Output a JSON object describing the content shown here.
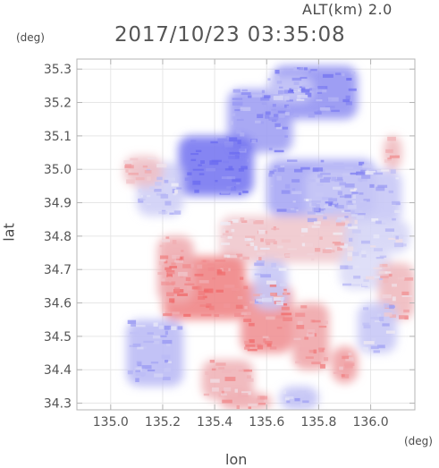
{
  "header": {
    "altitude": "ALT(km) 2.0",
    "timestamp": "2017/10/23 03:35:08"
  },
  "colors": {
    "frame": "#b4b4b4",
    "grid": "#e6e6e6",
    "positive": "#f06a6a",
    "negative": "#6b6bf0",
    "neutral": "#f0f0f8"
  },
  "chart_data": {
    "type": "heatmap",
    "title": "2017/10/23 03:35:08",
    "xlabel": "lon",
    "ylabel": "lat",
    "x_unit": "(deg)",
    "y_unit": "(deg)",
    "xlim": [
      134.87,
      136.17
    ],
    "ylim": [
      34.28,
      35.33
    ],
    "x_ticks": [
      135.0,
      135.2,
      135.4,
      135.6,
      135.8,
      136.0
    ],
    "x_tick_labels": [
      "135.0",
      "135.2",
      "135.4",
      "135.6",
      "135.8",
      "136.0"
    ],
    "y_ticks": [
      34.3,
      34.4,
      34.5,
      34.6,
      34.7,
      34.8,
      34.9,
      35.0,
      35.1,
      35.2,
      35.3
    ],
    "y_tick_labels": [
      "34.3",
      "34.4",
      "34.5",
      "34.6",
      "34.7",
      "34.8",
      "34.9",
      "35.0",
      "35.1",
      "35.2",
      "35.3"
    ],
    "grid": true,
    "colorscale": "diverging blue-white-red",
    "regions": [
      {
        "lon": [
          135.62,
          135.95
        ],
        "lat": [
          35.15,
          35.31
        ],
        "value": -0.7
      },
      {
        "lon": [
          135.45,
          135.7
        ],
        "lat": [
          35.05,
          35.24
        ],
        "value": -0.6
      },
      {
        "lon": [
          135.26,
          135.55
        ],
        "lat": [
          34.92,
          35.1
        ],
        "value": -0.9
      },
      {
        "lon": [
          135.6,
          136.02
        ],
        "lat": [
          34.86,
          35.03
        ],
        "value": -0.55
      },
      {
        "lon": [
          135.75,
          136.12
        ],
        "lat": [
          34.84,
          35.0
        ],
        "value": -0.3
      },
      {
        "lon": [
          135.1,
          135.28
        ],
        "lat": [
          34.86,
          35.02
        ],
        "value": -0.25
      },
      {
        "lon": [
          135.05,
          135.2
        ],
        "lat": [
          34.95,
          35.04
        ],
        "value": 0.35
      },
      {
        "lon": [
          135.42,
          135.95
        ],
        "lat": [
          34.72,
          34.86
        ],
        "value": 0.3
      },
      {
        "lon": [
          135.9,
          136.15
        ],
        "lat": [
          34.75,
          34.85
        ],
        "value": -0.2
      },
      {
        "lon": [
          135.2,
          135.52
        ],
        "lat": [
          34.55,
          34.74
        ],
        "value": 0.8
      },
      {
        "lon": [
          135.5,
          135.7
        ],
        "lat": [
          34.45,
          34.66
        ],
        "value": 0.7
      },
      {
        "lon": [
          135.18,
          135.32
        ],
        "lat": [
          34.6,
          34.8
        ],
        "value": 0.5
      },
      {
        "lon": [
          135.7,
          135.84
        ],
        "lat": [
          34.4,
          34.6
        ],
        "value": 0.55
      },
      {
        "lon": [
          135.85,
          135.95
        ],
        "lat": [
          34.36,
          34.47
        ],
        "value": 0.6
      },
      {
        "lon": [
          135.88,
          136.08
        ],
        "lat": [
          34.64,
          34.76
        ],
        "value": -0.15
      },
      {
        "lon": [
          136.03,
          136.17
        ],
        "lat": [
          34.55,
          34.72
        ],
        "value": 0.4
      },
      {
        "lon": [
          135.06,
          135.28
        ],
        "lat": [
          34.35,
          34.55
        ],
        "value": -0.4
      },
      {
        "lon": [
          135.35,
          135.55
        ],
        "lat": [
          34.31,
          34.43
        ],
        "value": 0.45
      },
      {
        "lon": [
          135.42,
          135.62
        ],
        "lat": [
          34.28,
          34.33
        ],
        "value": 0.5
      },
      {
        "lon": [
          135.65,
          135.8
        ],
        "lat": [
          34.28,
          34.35
        ],
        "value": -0.35
      },
      {
        "lon": [
          135.55,
          135.68
        ],
        "lat": [
          34.58,
          34.73
        ],
        "value": -0.3
      },
      {
        "lon": [
          135.95,
          136.1
        ],
        "lat": [
          34.45,
          34.6
        ],
        "value": -0.3
      },
      {
        "lon": [
          135.6,
          135.78
        ],
        "lat": [
          35.2,
          35.28
        ],
        "value": -0.3
      },
      {
        "lon": [
          136.05,
          136.12
        ],
        "lat": [
          35.0,
          35.1
        ],
        "value": 0.4
      }
    ]
  }
}
